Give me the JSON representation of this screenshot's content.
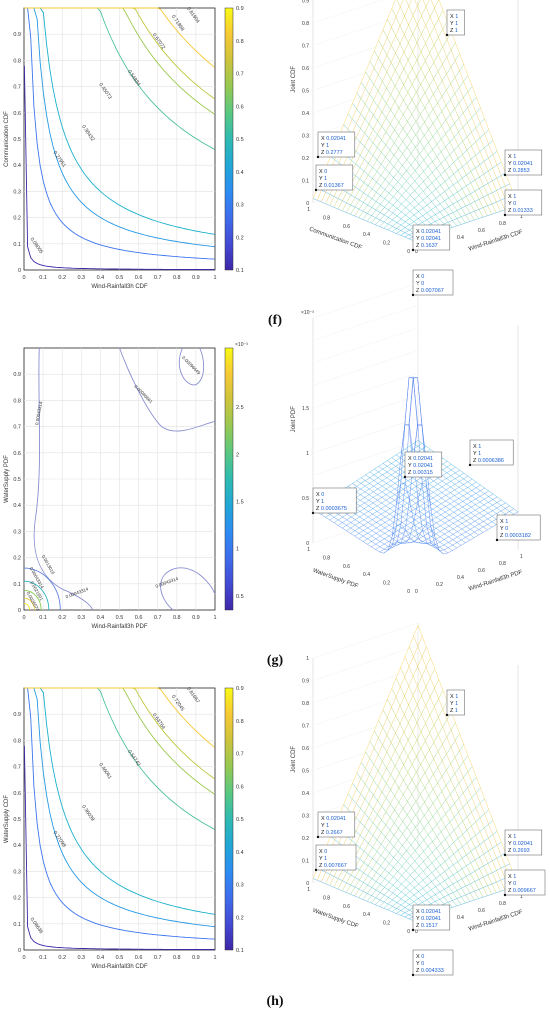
{
  "panels": [
    {
      "label": "(f)",
      "contour": {
        "xlabel": "Wind-Rainfall3h CDF",
        "ylabel": "Communication CDF",
        "colorbar_ticks": [
          "0.1",
          "0.2",
          "0.3",
          "0.4",
          "0.5",
          "0.6",
          "0.7",
          "0.8",
          "0.9"
        ],
        "colorbar_exp": "",
        "levels": [
          "0.08005",
          "0.27951",
          "0.38432",
          "0.45073",
          "0.54884",
          "0.67072",
          "0.71868",
          "0.81904"
        ]
      },
      "surface": {
        "zlabel": "Joint CDF",
        "xlabel": "Communication CDF",
        "ylabel": "Wind-Rainfall3h CDF",
        "z_exp": "",
        "callouts": [
          {
            "lines": [
              "X 1",
              "Y 1",
              "Z 1"
            ]
          },
          {
            "lines": [
              "X 0.02041",
              "Y 1",
              "Z 0.2777"
            ]
          },
          {
            "lines": [
              "X 1",
              "Y 0.02041",
              "Z 0.2853"
            ]
          },
          {
            "lines": [
              "X 0",
              "Y 1",
              "Z 0.01367"
            ]
          },
          {
            "lines": [
              "X 1",
              "Y 0",
              "Z 0.01333"
            ]
          },
          {
            "lines": [
              "X 0.02041",
              "Y 0.02041",
              "Z 0.1637"
            ]
          },
          {
            "lines": [
              "X 0",
              "Y 0",
              "Z 0.007067"
            ]
          }
        ]
      }
    },
    {
      "label": "(g)",
      "contour": {
        "xlabel": "Wind-Rainfall3h PDF",
        "ylabel": "WaterSupply PDF",
        "colorbar_ticks": [
          "0.5",
          "1",
          "1.5",
          "2",
          "2.5"
        ],
        "colorbar_exp": "×10⁻³",
        "levels": [
          "0.00043314",
          "0.00086661",
          "0.00043314",
          "0.00096649",
          "0.00043314",
          "0.00043314",
          "0.0013016",
          "0.0021691",
          "0.0026074"
        ]
      },
      "surface": {
        "zlabel": "Joint PDF",
        "xlabel": "WaterSupply PDF",
        "ylabel": "Wind-Rainfall3h PDF",
        "z_exp": "×10⁻³",
        "callouts": [
          {
            "lines": [
              "X 1",
              "Y 1",
              "Z 0.0006386"
            ]
          },
          {
            "lines": [
              "X 0.02041",
              "Y 0.02041",
              "Z 0.00315"
            ]
          },
          {
            "lines": [
              "X 0",
              "Y 1",
              "Z 0.0003675"
            ]
          },
          {
            "lines": [
              "X 1",
              "Y 0",
              "Z 0.0003182"
            ]
          }
        ]
      }
    },
    {
      "label": "(h)",
      "contour": {
        "xlabel": "Wind-Rainfall3h CDF",
        "ylabel": "WaterSupply CDF",
        "colorbar_ticks": [
          "0.1",
          "0.2",
          "0.3",
          "0.4",
          "0.5",
          "0.6",
          "0.7",
          "0.8",
          "0.9"
        ],
        "colorbar_exp": "",
        "levels": [
          "0.08636",
          "0.27098",
          "0.36039",
          "0.46061",
          "0.54742",
          "0.63764",
          "0.72045",
          "0.81667"
        ]
      },
      "surface": {
        "zlabel": "Joint CDF",
        "xlabel": "WaterSupply CDF",
        "ylabel": "Wind-Rainfall3h CDF",
        "z_exp": "",
        "callouts": [
          {
            "lines": [
              "X 1",
              "Y 1",
              "Z 1"
            ]
          },
          {
            "lines": [
              "X 0.02041",
              "Y 1",
              "Z 0.2667"
            ]
          },
          {
            "lines": [
              "X 1",
              "Y 0.02041",
              "Z 0.2693"
            ]
          },
          {
            "lines": [
              "X 0",
              "Y 1",
              "Z 0.007667"
            ]
          },
          {
            "lines": [
              "X 1",
              "Y 0",
              "Z 0.009667"
            ]
          },
          {
            "lines": [
              "X 0.02041",
              "Y 0.02041",
              "Z 0.1517"
            ]
          },
          {
            "lines": [
              "X 0",
              "Y 0",
              "Z 0.004333"
            ]
          }
        ]
      }
    }
  ],
  "chart_data": [
    {
      "type": "contour",
      "xlabel": "Wind-Rainfall3h CDF",
      "ylabel": "Communication CDF",
      "xlim": [
        0,
        1
      ],
      "ylim": [
        0,
        1
      ],
      "x_ticks": [
        0,
        0.1,
        0.2,
        0.3,
        0.4,
        0.5,
        0.6,
        0.7,
        0.8,
        0.9,
        1
      ],
      "y_ticks": [
        0,
        0.1,
        0.2,
        0.3,
        0.4,
        0.5,
        0.6,
        0.7,
        0.8,
        0.9
      ],
      "contour_levels": [
        0.08005,
        0.27951,
        0.38432,
        0.45073,
        0.54884,
        0.67072,
        0.71868,
        0.81904
      ],
      "colorbar_range": [
        0.1,
        0.9
      ],
      "grid": true
    },
    {
      "type": "surface",
      "zlabel": "Joint CDF",
      "xlabel": "Communication CDF",
      "ylabel": "Wind-Rainfall3h CDF",
      "zlim": [
        0,
        1
      ],
      "points": [
        {
          "x": 1,
          "y": 1,
          "z": 1
        },
        {
          "x": 0.02041,
          "y": 1,
          "z": 0.2777
        },
        {
          "x": 1,
          "y": 0.02041,
          "z": 0.2853
        },
        {
          "x": 0,
          "y": 1,
          "z": 0.01367
        },
        {
          "x": 1,
          "y": 0,
          "z": 0.01333
        },
        {
          "x": 0.02041,
          "y": 0.02041,
          "z": 0.1637
        },
        {
          "x": 0,
          "y": 0,
          "z": 0.007067
        }
      ]
    },
    {
      "type": "contour",
      "xlabel": "Wind-Rainfall3h PDF",
      "ylabel": "WaterSupply PDF",
      "xlim": [
        0,
        1
      ],
      "ylim": [
        0,
        1
      ],
      "colorbar_range": [
        0.0005,
        0.0028
      ],
      "contour_levels": [
        0.00043314,
        0.00086661,
        0.00096649,
        0.0013016,
        0.0021691,
        0.0026074
      ],
      "grid": true
    },
    {
      "type": "surface",
      "zlabel": "Joint PDF",
      "xlabel": "WaterSupply PDF",
      "ylabel": "Wind-Rainfall3h PDF",
      "points": [
        {
          "x": 1,
          "y": 1,
          "z": 0.0006386
        },
        {
          "x": 0.02041,
          "y": 0.02041,
          "z": 0.00315
        },
        {
          "x": 0,
          "y": 1,
          "z": 0.0003675
        },
        {
          "x": 1,
          "y": 0,
          "z": 0.0003182
        }
      ]
    },
    {
      "type": "contour",
      "xlabel": "Wind-Rainfall3h CDF",
      "ylabel": "WaterSupply CDF",
      "xlim": [
        0,
        1
      ],
      "ylim": [
        0,
        1
      ],
      "contour_levels": [
        0.08636,
        0.27098,
        0.36039,
        0.46061,
        0.54742,
        0.63764,
        0.72045,
        0.81667
      ],
      "colorbar_range": [
        0.1,
        0.9
      ],
      "grid": true
    },
    {
      "type": "surface",
      "zlabel": "Joint CDF",
      "xlabel": "WaterSupply CDF",
      "ylabel": "Wind-Rainfall3h CDF",
      "zlim": [
        0,
        1
      ],
      "points": [
        {
          "x": 1,
          "y": 1,
          "z": 1
        },
        {
          "x": 0.02041,
          "y": 1,
          "z": 0.2667
        },
        {
          "x": 1,
          "y": 0.02041,
          "z": 0.2693
        },
        {
          "x": 0,
          "y": 1,
          "z": 0.007667
        },
        {
          "x": 1,
          "y": 0,
          "z": 0.009667
        },
        {
          "x": 0.02041,
          "y": 0.02041,
          "z": 0.1517
        },
        {
          "x": 0,
          "y": 0,
          "z": 0.004333
        }
      ]
    }
  ]
}
